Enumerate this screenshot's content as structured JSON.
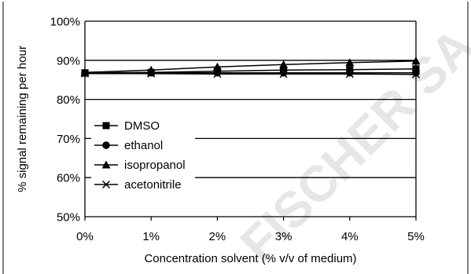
{
  "chart_data": {
    "type": "line",
    "title": "",
    "xlabel": "Concentration solvent (% v/v of medium)",
    "ylabel": "% signal remaining per hour",
    "x_ticks": [
      "0%",
      "1%",
      "2%",
      "3%",
      "4%",
      "5%"
    ],
    "x": [
      0,
      1,
      2,
      3,
      4,
      5
    ],
    "y_ticks": [
      "50%",
      "60%",
      "70%",
      "80%",
      "90%",
      "100%"
    ],
    "ylim": [
      50,
      100
    ],
    "grid": "horizontal",
    "legend_position": "left-center",
    "series": [
      {
        "name": "DMSO",
        "marker": "square",
        "values": [
          86.8,
          86.9,
          87.2,
          87.5,
          87.6,
          87.8
        ]
      },
      {
        "name": "ethanol",
        "marker": "circle",
        "values": [
          86.7,
          86.8,
          86.8,
          86.8,
          86.8,
          86.8
        ]
      },
      {
        "name": "isopropanol",
        "marker": "triangle",
        "values": [
          86.9,
          87.5,
          88.3,
          88.9,
          89.4,
          89.8
        ]
      },
      {
        "name": "acetonitrile",
        "marker": "x",
        "values": [
          86.6,
          86.6,
          86.5,
          86.5,
          86.5,
          86.4
        ]
      }
    ],
    "colors": {
      "series_line": "#000000",
      "marker": "#000000",
      "gridline": "#000000",
      "plot_border": "#000000"
    }
  },
  "watermark": {
    "text": "FISCHER SA",
    "color": "#e6e6e6"
  }
}
